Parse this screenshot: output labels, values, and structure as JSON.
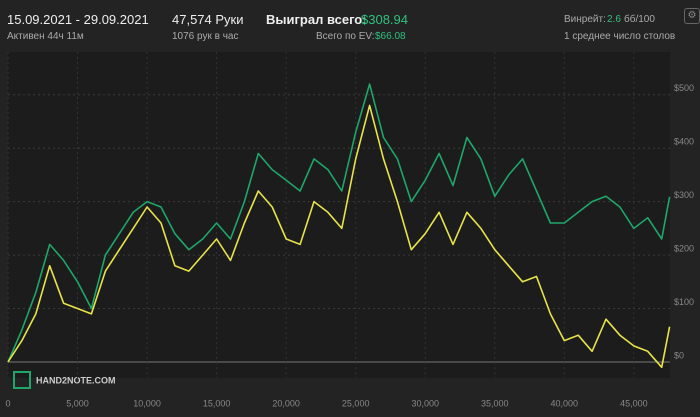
{
  "header": {
    "dates": "15.09.2021 - 29.09.2021",
    "hands": "47,574 Руки",
    "won_label": "Выиграл всего:",
    "won_value": "$308.94",
    "winrate_label": "Винрейт:",
    "winrate_value": "2.6",
    "winrate_unit": "бб/100",
    "active": "Активен 44ч 11м",
    "hands_per_hour": "1076 рук в час",
    "ev_label": "Всего по EV:",
    "ev_value": "$66.08",
    "tables": "1 среднее число столов",
    "logo": "HAND2NOTE.COM"
  },
  "chart_data": {
    "type": "line",
    "x": [
      0,
      1000,
      2000,
      3000,
      4000,
      5000,
      6000,
      7000,
      8000,
      9000,
      10000,
      11000,
      12000,
      13000,
      14000,
      15000,
      16000,
      17000,
      18000,
      19000,
      20000,
      21000,
      22000,
      23000,
      24000,
      25000,
      26000,
      27000,
      28000,
      29000,
      30000,
      31000,
      32000,
      33000,
      34000,
      35000,
      36000,
      37000,
      38000,
      39000,
      40000,
      41000,
      42000,
      43000,
      44000,
      45000,
      46000,
      47000,
      47574
    ],
    "series": [
      {
        "color": "#1fa66a",
        "values": [
          0,
          60,
          130,
          220,
          190,
          150,
          100,
          200,
          240,
          280,
          300,
          290,
          240,
          210,
          230,
          260,
          230,
          300,
          390,
          360,
          340,
          320,
          380,
          360,
          320,
          430,
          520,
          420,
          380,
          300,
          340,
          390,
          330,
          420,
          380,
          310,
          350,
          380,
          320,
          260,
          260,
          280,
          300,
          310,
          290,
          250,
          270,
          230,
          309
        ]
      },
      {
        "color": "#e8e34a",
        "values": [
          0,
          40,
          90,
          180,
          110,
          100,
          90,
          170,
          210,
          250,
          290,
          260,
          180,
          170,
          200,
          230,
          190,
          260,
          320,
          290,
          230,
          220,
          300,
          280,
          250,
          380,
          480,
          380,
          300,
          210,
          240,
          280,
          220,
          280,
          250,
          210,
          180,
          150,
          160,
          90,
          40,
          50,
          20,
          80,
          50,
          30,
          20,
          -10,
          66
        ]
      }
    ],
    "xlim": [
      0,
      47600
    ],
    "ylim": [
      -30,
      580
    ],
    "xticks": [
      0,
      {
        "value": 5000,
        "label": "5,000"
      },
      {
        "value": 10000,
        "label": "10,000"
      },
      {
        "value": 15000,
        "label": "15,000"
      },
      {
        "value": 20000,
        "label": "20,000"
      },
      {
        "value": 25000,
        "label": "25,000"
      },
      {
        "value": 30000,
        "label": "30,000"
      },
      {
        "value": 35000,
        "label": "35,000"
      },
      {
        "value": 40000,
        "label": "40,000"
      },
      {
        "value": 45000,
        "label": "45,000"
      }
    ],
    "yticks": [
      {
        "value": 0,
        "label": "$0"
      },
      {
        "value": 100,
        "label": "$100"
      },
      {
        "value": 200,
        "label": "$200"
      },
      {
        "value": 300,
        "label": "$300"
      },
      {
        "value": 400,
        "label": "$400"
      },
      {
        "value": 500,
        "label": "$500"
      }
    ],
    "grid": true
  }
}
